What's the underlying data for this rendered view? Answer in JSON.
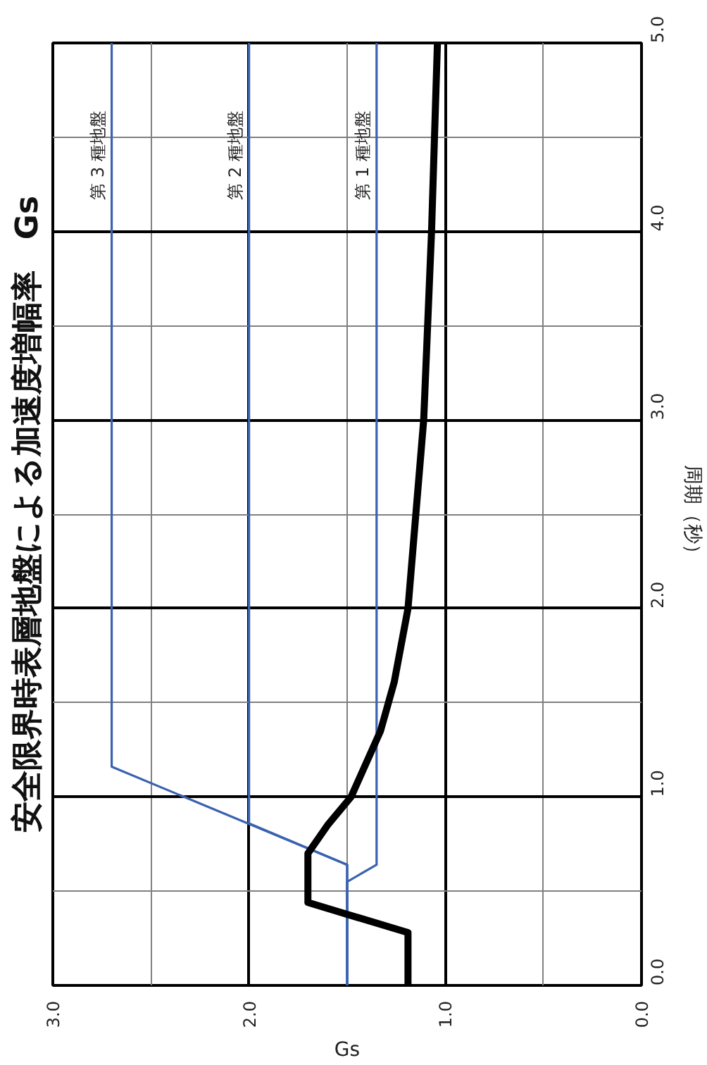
{
  "chart_data": {
    "type": "line",
    "title": "安全限界時表層地盤による加速度増幅率　Gs",
    "xlabel": "Gs",
    "ylabel": "周期（秒）",
    "xlim": [
      3,
      0
    ],
    "ylim": [
      0,
      5
    ],
    "xticks": [
      {
        "value": 0,
        "label": "0.0"
      },
      {
        "value": 1,
        "label": "1.0"
      },
      {
        "value": 2,
        "label": "2.0"
      },
      {
        "value": 3,
        "label": "3.0"
      }
    ],
    "yticks": [
      {
        "value": 0,
        "label": "0.0"
      },
      {
        "value": 1,
        "label": "1.0"
      },
      {
        "value": 2,
        "label": "2.0"
      },
      {
        "value": 3,
        "label": "3.0"
      },
      {
        "value": 4,
        "label": "4.0"
      },
      {
        "value": 5,
        "label": "5.0"
      }
    ],
    "grid": true,
    "line_style": "solid",
    "series": [
      {
        "name": "第 1 種地盤",
        "color": "#3a62b0",
        "x": [
          1.5,
          1.5,
          1.35,
          1.35
        ],
        "values": [
          0,
          0.55,
          0.64,
          5
        ]
      },
      {
        "name": "第 2 種地盤",
        "color": "#3a62b0",
        "x": [
          1.5,
          1.5,
          2.0,
          2.0
        ],
        "values": [
          0,
          0.64,
          0.86,
          5
        ]
      },
      {
        "name": "第 3 種地盤",
        "color": "#3a62b0",
        "x": [
          1.5,
          1.5,
          2.7,
          2.7
        ],
        "values": [
          0,
          0.64,
          1.16,
          5
        ]
      },
      {
        "color": "#000000",
        "x": [
          1.19,
          1.19,
          1.7,
          1.7,
          1.6,
          1.48,
          1.33,
          1.26,
          1.19,
          1.11,
          1.07,
          1.04
        ],
        "values": [
          0,
          0.28,
          0.44,
          0.7,
          0.85,
          1.0,
          1.35,
          1.61,
          2.0,
          3.0,
          4.0,
          5.0
        ]
      }
    ]
  }
}
